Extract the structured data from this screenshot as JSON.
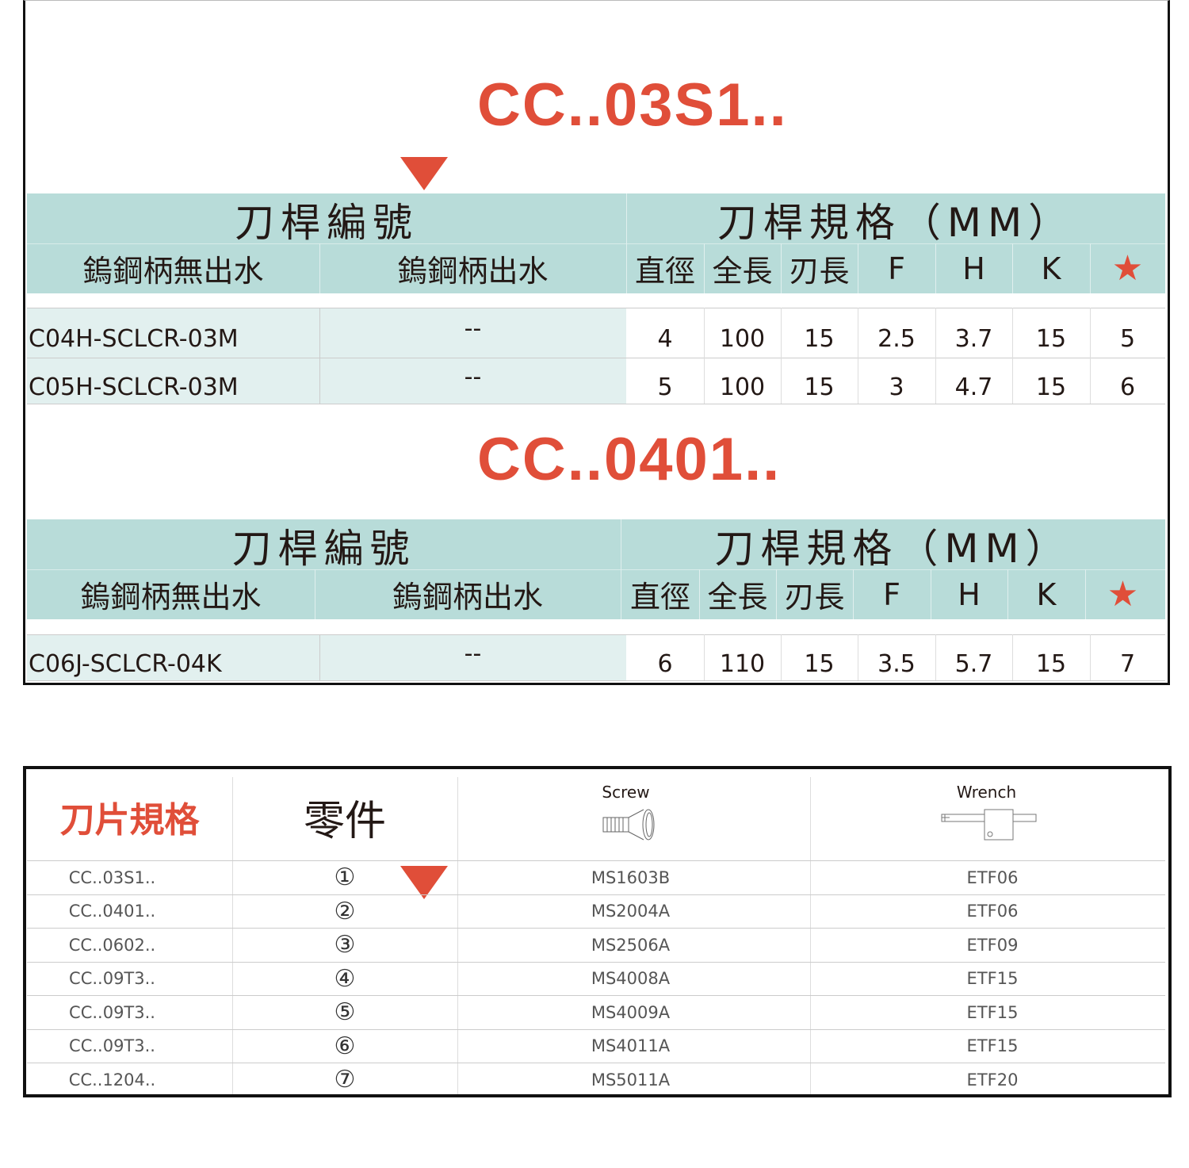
{
  "sections": [
    {
      "title": "CC..03S1..",
      "header": {
        "group1": "刀桿編號",
        "group2": "刀桿規格（MM）",
        "col_no_coolant": "鎢鋼柄無出水",
        "col_coolant": "鎢鋼柄出水",
        "specs": [
          "直徑",
          "全長",
          "刃長",
          "F",
          "H",
          "K",
          "★"
        ]
      },
      "rows": [
        {
          "no_coolant": "C04H-SCLCR-03M",
          "coolant": "--",
          "specs": [
            "4",
            "100",
            "15",
            "2.5",
            "3.7",
            "15",
            "5"
          ]
        },
        {
          "no_coolant": "C05H-SCLCR-03M",
          "coolant": "--",
          "specs": [
            "5",
            "100",
            "15",
            "3",
            "4.7",
            "15",
            "6"
          ]
        }
      ]
    },
    {
      "title": "CC..0401..",
      "header": {
        "group1": "刀桿編號",
        "group2": "刀桿規格（MM）",
        "col_no_coolant": "鎢鋼柄無出水",
        "col_coolant": "鎢鋼柄出水",
        "specs": [
          "直徑",
          "全長",
          "刃長",
          "F",
          "H",
          "K",
          "★"
        ]
      },
      "rows": [
        {
          "no_coolant": "C06J-SCLCR-04K",
          "coolant": "--",
          "specs": [
            "6",
            "110",
            "15",
            "3.5",
            "5.7",
            "15",
            "7"
          ]
        }
      ]
    }
  ],
  "parts": {
    "header": {
      "insert": "刀片規格",
      "parts": "零件",
      "screw": "Screw",
      "wrench": "Wrench"
    },
    "rows": [
      {
        "insert": "CC..03S1..",
        "part": "①",
        "screw": "MS1603B",
        "wrench": "ETF06"
      },
      {
        "insert": "CC..0401..",
        "part": "②",
        "screw": "MS2004A",
        "wrench": "ETF06"
      },
      {
        "insert": "CC..0602..",
        "part": "③",
        "screw": "MS2506A",
        "wrench": "ETF09"
      },
      {
        "insert": "CC..09T3..",
        "part": "④",
        "screw": "MS4008A",
        "wrench": "ETF15"
      },
      {
        "insert": "CC..09T3..",
        "part": "⑤",
        "screw": "MS4009A",
        "wrench": "ETF15"
      },
      {
        "insert": "CC..09T3..",
        "part": "⑥",
        "screw": "MS4011A",
        "wrench": "ETF15"
      },
      {
        "insert": "CC..1204..",
        "part": "⑦",
        "screw": "MS5011A",
        "wrench": "ETF20"
      }
    ]
  },
  "colors": {
    "accent": "#e04e39",
    "header_bg": "#b8dcd9",
    "row_bg": "#e2f0ef"
  }
}
